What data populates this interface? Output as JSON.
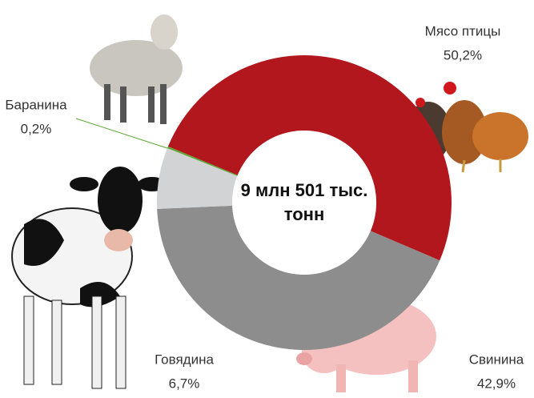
{
  "chart_data": {
    "type": "donut",
    "center_label": [
      "9 млн 501 тыс.",
      "тонн"
    ],
    "categories": [
      "Мясо птицы",
      "Свинина",
      "Говядина",
      "Баранина"
    ],
    "values": [
      50.2,
      42.9,
      6.7,
      0.2
    ],
    "value_labels": [
      "50,2%",
      "42,9%",
      "6,7%",
      "0,2%"
    ],
    "colors": [
      "#b2171d",
      "#8d8d8d",
      "#d2d3d5",
      "#5aa832"
    ]
  }
}
